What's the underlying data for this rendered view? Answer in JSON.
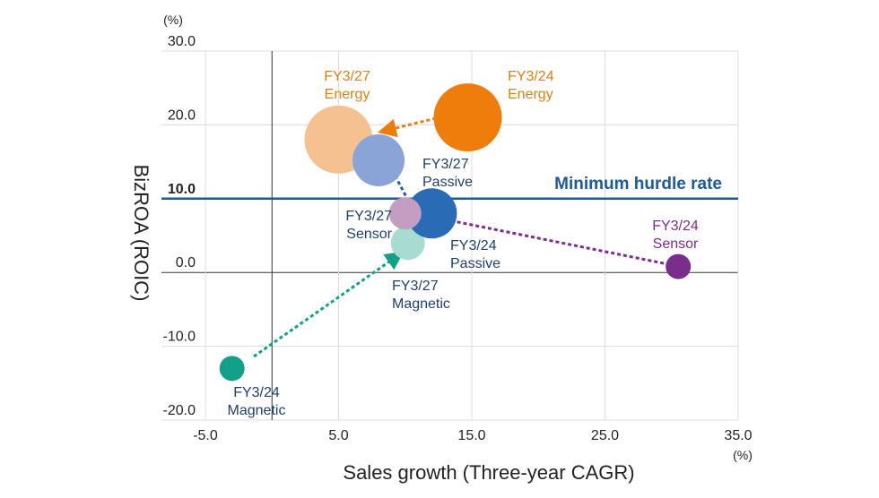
{
  "chart_data": {
    "type": "scatter",
    "xlabel": "Sales growth (Three-year CAGR)",
    "ylabel": "BizROA (ROIC)",
    "x_unit": "(%)",
    "y_unit": "(%)",
    "xlim": [
      -8.3,
      35.0
    ],
    "ylim": [
      -20.0,
      30.0
    ],
    "x_ticks": [
      -5.0,
      5.0,
      15.0,
      25.0,
      35.0
    ],
    "y_ticks": [
      -20.0,
      -10.0,
      0.0,
      10.0,
      20.0,
      30.0
    ],
    "x_tick_labels": [
      "-5.0",
      "5.0",
      "15.0",
      "25.0",
      "35.0"
    ],
    "y_tick_labels": [
      "-20.0",
      "-10.0",
      "0.0",
      "10.0",
      "20.0",
      "30.0"
    ],
    "grid": true,
    "zero_lines": true,
    "hurdle": {
      "label": "Minimum hurdle rate",
      "value": 10.0,
      "color": "#1d5a9c"
    },
    "series": [
      {
        "name": "Energy",
        "color_start": "#ee7d0c",
        "color_end": "#f6c190",
        "label_color": "#e0800f",
        "start": {
          "label": [
            "FY3/24",
            "Energy"
          ],
          "x": 14.7,
          "y": 21.0,
          "r": 38
        },
        "end": {
          "label": [
            "FY3/27",
            "Energy"
          ],
          "x": 5.0,
          "y": 18.0,
          "r": 38
        }
      },
      {
        "name": "Passive",
        "color_start": "#2a6bb6",
        "color_end": "#8aa4d8",
        "label_color": "#21406e",
        "start": {
          "label": [
            "FY3/24",
            "Passive"
          ],
          "x": 12.0,
          "y": 8.0,
          "r": 28
        },
        "end": {
          "label": [
            "FY3/27",
            "Passive"
          ],
          "x": 8.0,
          "y": 15.2,
          "r": 29
        }
      },
      {
        "name": "Sensor",
        "color_start": "#7a2d8c",
        "color_end": "#c49ec2",
        "label_color": "#7a2d8c",
        "end_label_color": "#21406e",
        "start": {
          "label": [
            "FY3/24",
            "Sensor"
          ],
          "x": 30.5,
          "y": 0.8,
          "r": 14
        },
        "end": {
          "label": [
            "FY3/27",
            "Sensor"
          ],
          "x": 10.0,
          "y": 8.0,
          "r": 18
        }
      },
      {
        "name": "Magnetic",
        "color_start": "#13a08a",
        "color_end": "#a8dbd2",
        "label_color": "#21406e",
        "start": {
          "label": [
            "FY3/24",
            "Magnetic"
          ],
          "x": -3.0,
          "y": -13.0,
          "r": 14
        },
        "end": {
          "label": [
            "FY3/27",
            "Magnetic"
          ],
          "x": 10.2,
          "y": 4.0,
          "r": 19
        }
      }
    ]
  }
}
